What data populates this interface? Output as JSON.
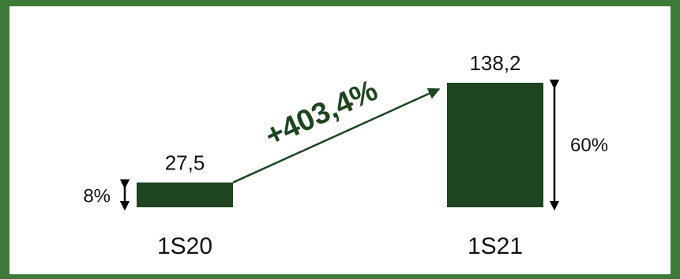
{
  "chart_data": {
    "type": "bar",
    "categories": [
      "1S20",
      "1S21"
    ],
    "values": [
      27.5,
      138.2
    ],
    "value_labels": [
      "27,5",
      "138,2"
    ],
    "margin_labels": [
      "8%",
      "60%"
    ],
    "growth_label": "+403,4%",
    "title": "",
    "xlabel": "",
    "ylabel": "",
    "grid": false,
    "legend": "none"
  },
  "colors": {
    "bar": "#1e4520",
    "frame": "#3d7a3a",
    "text": "#111111",
    "growth_text": "#1e4520"
  }
}
